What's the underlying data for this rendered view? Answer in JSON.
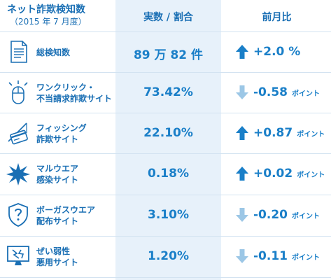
{
  "header": {
    "title": "ネット詐欺検知数",
    "subtitle": "（2015 年 7 月度）",
    "col_value": "実数 / 割合",
    "col_compare": "前月比"
  },
  "rows": [
    {
      "icon": "document-icon",
      "label1": "総検知数",
      "label2": "",
      "value_main": "89 万 82 件",
      "direction": "up",
      "change": "+2.0 %",
      "unit": ""
    },
    {
      "icon": "mouse-click-icon",
      "label1": "ワンクリック・",
      "label2": "不当請求詐欺サイト",
      "value_main": "73.42%",
      "direction": "down",
      "change": "-0.58",
      "unit": "ポイント"
    },
    {
      "icon": "fishing-card-icon",
      "label1": "フィッシング",
      "label2": "詐欺サイト",
      "value_main": "22.10%",
      "direction": "up",
      "change": "+0.87",
      "unit": "ポイント"
    },
    {
      "icon": "malware-burst-icon",
      "label1": "マルウエア",
      "label2": "感染サイト",
      "value_main": "0.18%",
      "direction": "up",
      "change": "+0.02",
      "unit": "ポイント"
    },
    {
      "icon": "shield-question-icon",
      "label1": "ボーガスウエア",
      "label2": "配布サイト",
      "value_main": "3.10%",
      "direction": "down",
      "change": "-0.20",
      "unit": "ポイント"
    },
    {
      "icon": "vulnerable-monitor-icon",
      "label1": "ぜい弱性",
      "label2": "悪用サイト",
      "value_main": "1.20%",
      "direction": "down",
      "change": "-0.11",
      "unit": "ポイント"
    }
  ],
  "colors": {
    "text": "#1a6fb4",
    "arrow_up": "#1a7fc8",
    "arrow_down": "#9cc7e6",
    "value_bg": "#e7f1fa"
  }
}
